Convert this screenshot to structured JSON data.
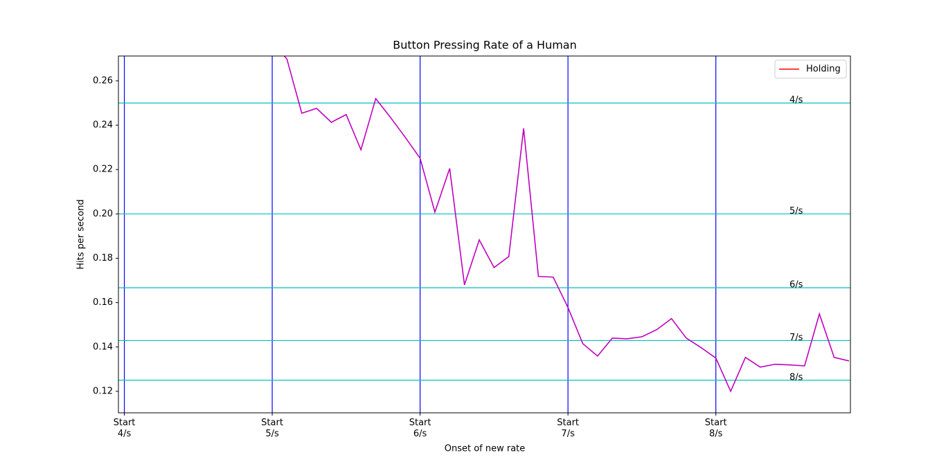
{
  "chart_data": {
    "type": "line",
    "title": "Button Pressing Rate of a Human",
    "xlabel": "Onset of new rate",
    "ylabel": "Hits per second",
    "xlim": [
      -0.4,
      49.1
    ],
    "ylim": [
      0.1103,
      0.2712
    ],
    "xticks": [
      {
        "value": 0,
        "label": "Start\n4/s"
      },
      {
        "value": 10,
        "label": "Start\n5/s"
      },
      {
        "value": 20,
        "label": "Start\n6/s"
      },
      {
        "value": 30,
        "label": "Start\n7/s"
      },
      {
        "value": 40,
        "label": "Start\n8/s"
      }
    ],
    "xgrid_color": "#0000ff",
    "yticks": [
      0.12,
      0.14,
      0.16,
      0.18,
      {
        "value": 0.2,
        "label": "0.20"
      },
      0.22,
      0.24,
      0.26
    ],
    "hlines": [
      {
        "value": 0.25,
        "label": "4/s"
      },
      {
        "value": 0.2,
        "label": "5/s"
      },
      {
        "value": 0.1667,
        "label": "6/s"
      },
      {
        "value": 0.1429,
        "label": "7/s"
      },
      {
        "value": 0.125,
        "label": "8/s"
      }
    ],
    "hline_color": "#00bfbf",
    "series": [
      {
        "color": "#bf00bf",
        "x": [
          10,
          11,
          12,
          13,
          14,
          15,
          16,
          17,
          18,
          19,
          20,
          21,
          22,
          23,
          24,
          25,
          26,
          27,
          28,
          29,
          30,
          31,
          32,
          33,
          34,
          35,
          36,
          37,
          38,
          39,
          40,
          41,
          42,
          43,
          44,
          45,
          46,
          47,
          48,
          49
        ],
        "values": [
          0.278,
          0.2697,
          0.2454,
          0.2476,
          0.2413,
          0.2448,
          0.2289,
          0.252,
          0.2435,
          0.2345,
          0.2251,
          0.2008,
          0.2205,
          0.168,
          0.1883,
          0.1758,
          0.1808,
          0.2386,
          0.1718,
          0.1715,
          0.1578,
          0.1415,
          0.1359,
          0.144,
          0.1437,
          0.1446,
          0.1478,
          0.1528,
          0.144,
          0.1397,
          0.135,
          0.12,
          0.1353,
          0.1309,
          0.1322,
          0.1319,
          0.1315,
          0.1549,
          0.1353,
          0.1337
        ]
      }
    ],
    "legend_entries": [
      {
        "name": "Holding",
        "color": "#ff0000"
      }
    ],
    "legend": "upper right"
  }
}
